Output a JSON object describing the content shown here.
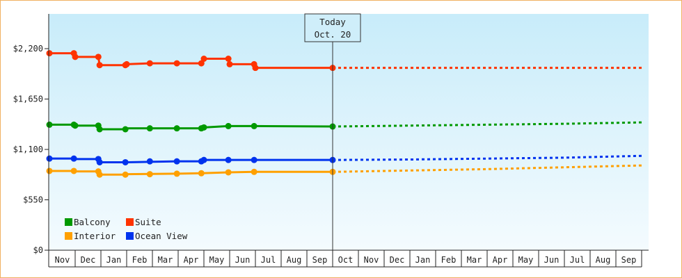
{
  "chart_data": {
    "type": "line",
    "y_ticks": [
      "$0",
      "$550",
      "$1,100",
      "$1,650",
      "$2,200"
    ],
    "ylim": [
      0,
      2200
    ],
    "x_months": [
      "Nov",
      "Dec",
      "Jan",
      "Feb",
      "Mar",
      "Apr",
      "May",
      "Jun",
      "Jul",
      "Aug",
      "Sep",
      "Oct",
      "Nov",
      "Dec",
      "Jan",
      "Feb",
      "Mar",
      "Apr",
      "May",
      "Jun",
      "Jul",
      "Aug",
      "Sep"
    ],
    "today_marker": {
      "line1": "Today",
      "line2": "Oct. 20",
      "x": 11.0
    },
    "legend_position": "bottom-left",
    "grid": false,
    "series": [
      {
        "name": "Suite",
        "color": "#ff3300",
        "historical": [
          [
            0,
            2150
          ],
          [
            0.95,
            2150
          ],
          [
            1.0,
            2110
          ],
          [
            1.9,
            2110
          ],
          [
            1.95,
            2020
          ],
          [
            2.95,
            2020
          ],
          [
            3.0,
            2030
          ],
          [
            3.9,
            2040
          ],
          [
            4.95,
            2040
          ],
          [
            5.0,
            2040
          ],
          [
            5.9,
            2040
          ],
          [
            6.0,
            2090
          ],
          [
            6.95,
            2090
          ],
          [
            7.0,
            2030
          ],
          [
            7.95,
            2030
          ],
          [
            8.0,
            1990
          ],
          [
            11.0,
            1990
          ]
        ],
        "markers": [
          [
            0,
            2150
          ],
          [
            0.95,
            2150
          ],
          [
            1.0,
            2110
          ],
          [
            1.9,
            2110
          ],
          [
            1.95,
            2020
          ],
          [
            2.95,
            2020
          ],
          [
            3.0,
            2030
          ],
          [
            3.9,
            2040
          ],
          [
            4.95,
            2040
          ],
          [
            5.9,
            2040
          ],
          [
            6.0,
            2090
          ],
          [
            6.95,
            2090
          ],
          [
            7.0,
            2030
          ],
          [
            7.95,
            2030
          ],
          [
            8.0,
            1990
          ],
          [
            11.0,
            1990
          ]
        ],
        "projected": [
          [
            11.0,
            1990
          ],
          [
            23.0,
            1990
          ]
        ]
      },
      {
        "name": "Balcony",
        "color": "#009900",
        "historical": [
          [
            0,
            1370
          ],
          [
            0.95,
            1370
          ],
          [
            1.0,
            1360
          ],
          [
            1.9,
            1360
          ],
          [
            1.95,
            1320
          ],
          [
            2.95,
            1320
          ],
          [
            3.0,
            1330
          ],
          [
            4.95,
            1330
          ],
          [
            5.0,
            1330
          ],
          [
            5.9,
            1330
          ],
          [
            6.0,
            1340
          ],
          [
            6.95,
            1355
          ],
          [
            7.95,
            1355
          ],
          [
            11.0,
            1350
          ]
        ],
        "markers": [
          [
            0,
            1370
          ],
          [
            0.95,
            1370
          ],
          [
            1.0,
            1360
          ],
          [
            1.9,
            1360
          ],
          [
            1.95,
            1320
          ],
          [
            2.95,
            1320
          ],
          [
            3.9,
            1330
          ],
          [
            4.95,
            1330
          ],
          [
            5.9,
            1330
          ],
          [
            6.0,
            1340
          ],
          [
            6.95,
            1355
          ],
          [
            7.95,
            1355
          ],
          [
            11.0,
            1350
          ]
        ],
        "projected": [
          [
            11.0,
            1350
          ],
          [
            14.0,
            1360
          ],
          [
            17.0,
            1370
          ],
          [
            20.0,
            1380
          ],
          [
            23.0,
            1395
          ]
        ]
      },
      {
        "name": "Ocean View",
        "color": "#0033ee",
        "historical": [
          [
            0,
            1000
          ],
          [
            0.95,
            1000
          ],
          [
            1.0,
            995
          ],
          [
            1.9,
            995
          ],
          [
            1.95,
            960
          ],
          [
            2.95,
            960
          ],
          [
            3.0,
            960
          ],
          [
            4.95,
            970
          ],
          [
            5.0,
            970
          ],
          [
            5.9,
            970
          ],
          [
            6.0,
            985
          ],
          [
            6.95,
            985
          ],
          [
            7.95,
            985
          ],
          [
            11.0,
            985
          ]
        ],
        "markers": [
          [
            0,
            1000
          ],
          [
            0.95,
            1000
          ],
          [
            1.9,
            995
          ],
          [
            1.95,
            960
          ],
          [
            2.95,
            960
          ],
          [
            3.9,
            970
          ],
          [
            4.95,
            970
          ],
          [
            5.9,
            970
          ],
          [
            6.0,
            985
          ],
          [
            6.95,
            985
          ],
          [
            7.95,
            985
          ],
          [
            11.0,
            985
          ]
        ],
        "projected": [
          [
            11.0,
            985
          ],
          [
            14.0,
            990
          ],
          [
            17.0,
            1000
          ],
          [
            20.0,
            1010
          ],
          [
            23.0,
            1030
          ]
        ]
      },
      {
        "name": "Interior",
        "color": "#ffa000",
        "historical": [
          [
            0,
            865
          ],
          [
            0.95,
            865
          ],
          [
            1.0,
            860
          ],
          [
            1.9,
            860
          ],
          [
            1.95,
            825
          ],
          [
            2.95,
            825
          ],
          [
            3.0,
            830
          ],
          [
            4.95,
            835
          ],
          [
            5.0,
            835
          ],
          [
            5.9,
            840
          ],
          [
            6.95,
            850
          ],
          [
            7.95,
            855
          ],
          [
            11.0,
            855
          ]
        ],
        "markers": [
          [
            0,
            865
          ],
          [
            0.95,
            865
          ],
          [
            1.9,
            860
          ],
          [
            1.95,
            825
          ],
          [
            2.95,
            825
          ],
          [
            3.9,
            830
          ],
          [
            4.95,
            835
          ],
          [
            5.9,
            840
          ],
          [
            6.95,
            850
          ],
          [
            7.95,
            855
          ],
          [
            11.0,
            855
          ]
        ],
        "projected": [
          [
            11.0,
            855
          ],
          [
            14.0,
            870
          ],
          [
            17.0,
            885
          ],
          [
            20.0,
            905
          ],
          [
            23.0,
            925
          ]
        ]
      }
    ],
    "legend": [
      {
        "name": "Balcony",
        "color": "#009900"
      },
      {
        "name": "Suite",
        "color": "#ff3300"
      },
      {
        "name": "Interior",
        "color": "#ffa000"
      },
      {
        "name": "Ocean View",
        "color": "#0033ee"
      }
    ]
  }
}
